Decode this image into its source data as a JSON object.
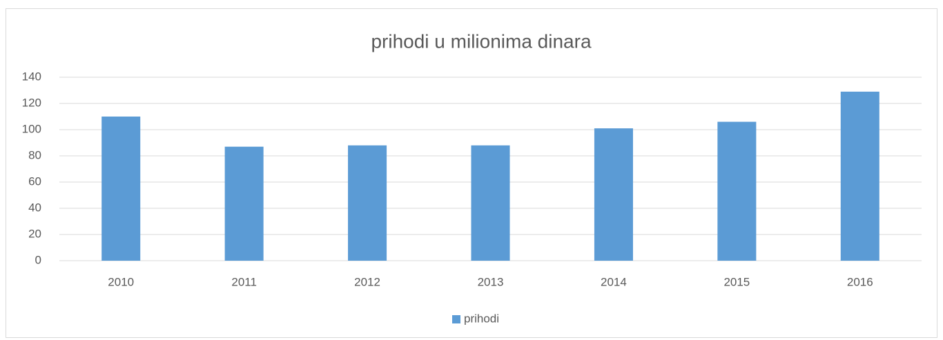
{
  "chart_data": {
    "type": "bar",
    "title": "prihodi u milionima dinara",
    "categories": [
      "2010",
      "2011",
      "2012",
      "2013",
      "2014",
      "2015",
      "2016"
    ],
    "series": [
      {
        "name": "prihodi",
        "color": "#5b9bd5",
        "values": [
          110,
          87,
          88,
          88,
          101,
          106,
          129
        ]
      }
    ],
    "ylim": [
      0,
      140
    ],
    "yticks": [
      0,
      20,
      40,
      60,
      80,
      100,
      120,
      140
    ],
    "grid": true,
    "legend": "bottom"
  }
}
